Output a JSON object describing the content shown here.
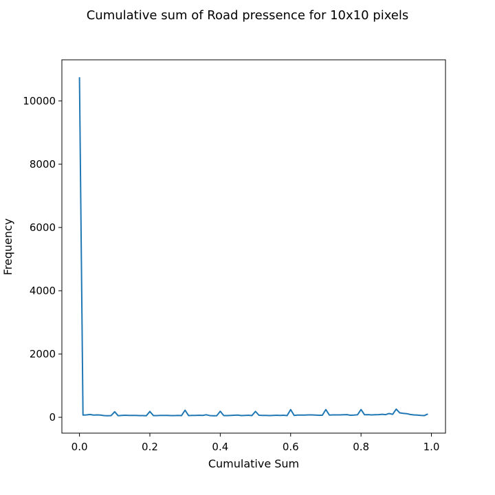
{
  "chart_data": {
    "type": "line",
    "title": "Cumulative sum of Road pressence for 10x10 pixels",
    "xlabel": "Cumulative Sum",
    "ylabel": "Frequency",
    "xlim": [
      -0.05,
      1.04
    ],
    "ylim": [
      -500,
      11300
    ],
    "xticks": [
      0.0,
      0.2,
      0.4,
      0.6,
      0.8,
      1.0
    ],
    "xtick_labels": [
      "0.0",
      "0.2",
      "0.4",
      "0.6",
      "0.8",
      "1.0"
    ],
    "yticks": [
      0,
      2000,
      4000,
      6000,
      8000,
      10000
    ],
    "ytick_labels": [
      "0",
      "2000",
      "4000",
      "6000",
      "8000",
      "10000"
    ],
    "grid": false,
    "legend": false,
    "series": [
      {
        "color": "#1f77b4",
        "x": [
          0.0,
          0.01,
          0.02,
          0.03,
          0.04,
          0.05,
          0.06,
          0.07,
          0.08,
          0.09,
          0.1,
          0.11,
          0.12,
          0.13,
          0.14,
          0.15,
          0.16,
          0.17,
          0.18,
          0.19,
          0.2,
          0.21,
          0.22,
          0.23,
          0.24,
          0.25,
          0.26,
          0.27,
          0.28,
          0.29,
          0.3,
          0.31,
          0.32,
          0.33,
          0.34,
          0.35,
          0.36,
          0.37,
          0.38,
          0.39,
          0.4,
          0.41,
          0.42,
          0.43,
          0.44,
          0.45,
          0.46,
          0.47,
          0.48,
          0.49,
          0.5,
          0.51,
          0.52,
          0.53,
          0.54,
          0.55,
          0.56,
          0.57,
          0.58,
          0.59,
          0.6,
          0.61,
          0.62,
          0.63,
          0.64,
          0.65,
          0.66,
          0.67,
          0.68,
          0.69,
          0.7,
          0.71,
          0.72,
          0.73,
          0.74,
          0.75,
          0.76,
          0.77,
          0.78,
          0.79,
          0.8,
          0.81,
          0.82,
          0.83,
          0.84,
          0.85,
          0.86,
          0.87,
          0.88,
          0.89,
          0.9,
          0.91,
          0.92,
          0.93,
          0.94,
          0.95,
          0.96,
          0.97,
          0.98,
          0.99
        ],
        "y": [
          10750,
          70,
          75,
          90,
          70,
          75,
          70,
          55,
          50,
          55,
          175,
          50,
          60,
          65,
          60,
          60,
          60,
          55,
          55,
          50,
          185,
          55,
          55,
          60,
          60,
          60,
          55,
          55,
          60,
          55,
          225,
          55,
          60,
          60,
          65,
          60,
          80,
          55,
          50,
          50,
          190,
          55,
          55,
          60,
          65,
          70,
          55,
          60,
          65,
          55,
          185,
          65,
          60,
          60,
          55,
          60,
          65,
          60,
          65,
          55,
          245,
          60,
          70,
          70,
          70,
          75,
          75,
          70,
          65,
          65,
          245,
          70,
          75,
          75,
          75,
          80,
          85,
          65,
          70,
          80,
          245,
          80,
          85,
          75,
          80,
          85,
          95,
          85,
          120,
          95,
          260,
          140,
          125,
          115,
          90,
          75,
          70,
          60,
          55,
          105
        ]
      }
    ]
  }
}
